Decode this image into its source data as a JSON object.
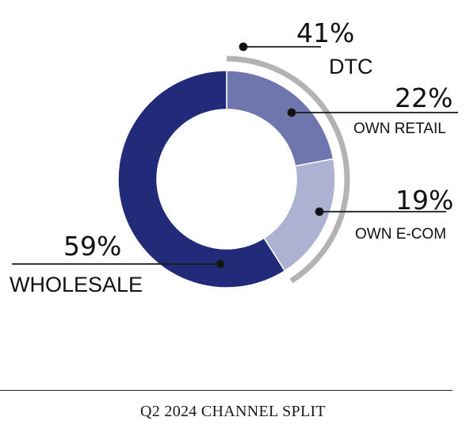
{
  "chart_data": {
    "type": "pie",
    "variant": "donut",
    "title": "Q2 2024 CHANNEL SPLIT",
    "slices": [
      {
        "label": "OWN RETAIL",
        "value": 22,
        "value_label": "22%",
        "color": "#6f76ad"
      },
      {
        "label": "OWN E-COM",
        "value": 19,
        "value_label": "19%",
        "color": "#adb2d3"
      },
      {
        "label": "WHOLESALE",
        "value": 59,
        "value_label": "59%",
        "color": "#222a7a"
      }
    ],
    "groups": [
      {
        "label": "DTC",
        "value": 41,
        "value_label": "41%",
        "members": [
          "OWN RETAIL",
          "OWN E-COM"
        ],
        "color": "#b3b3b3"
      }
    ]
  }
}
